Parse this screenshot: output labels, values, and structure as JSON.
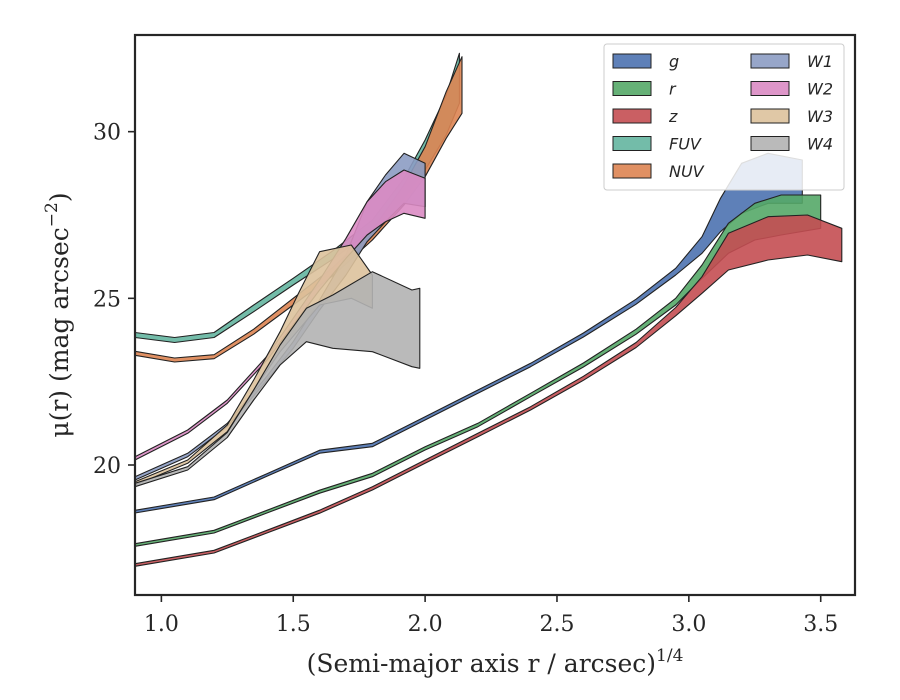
{
  "chart_data": {
    "type": "area",
    "xlabel": "(Semi-major axis r / arcsec)",
    "xlabel_sup": "1/4",
    "ylabel": "μ(r) (mag arcsec",
    "ylabel_sup": "−2",
    "ylabel_end": ")",
    "xlim": [
      0.9,
      3.63
    ],
    "ylim": [
      32.9,
      16.1
    ],
    "y_inverted": true,
    "xticks": [
      1.0,
      1.5,
      2.0,
      2.5,
      3.0,
      3.5
    ],
    "xtick_labels": [
      "1.0",
      "1.5",
      "2.0",
      "2.5",
      "3.0",
      "3.5"
    ],
    "yticks": [
      20,
      25,
      30
    ],
    "ytick_labels": [
      "20",
      "25",
      "30"
    ],
    "grid": false,
    "legend_position": "top-right",
    "legend_columns": 2,
    "series": [
      {
        "name": "g",
        "color": "#4c72b0",
        "points": [
          [
            0.9,
            18.6
          ],
          [
            1.2,
            19.0
          ],
          [
            1.4,
            19.7
          ],
          [
            1.6,
            20.4
          ],
          [
            1.8,
            20.6
          ],
          [
            2.0,
            21.4
          ],
          [
            2.2,
            22.2
          ],
          [
            2.4,
            23.0
          ],
          [
            2.6,
            23.9
          ],
          [
            2.8,
            24.9
          ],
          [
            2.95,
            25.8
          ],
          [
            3.05,
            26.6
          ],
          [
            3.12,
            27.5
          ],
          [
            3.2,
            28.3
          ],
          [
            3.3,
            28.6
          ],
          [
            3.43,
            28.5
          ]
        ],
        "widths": [
          0.08,
          0.08,
          0.08,
          0.09,
          0.1,
          0.1,
          0.1,
          0.1,
          0.12,
          0.15,
          0.2,
          0.5,
          1.0,
          1.5,
          1.5,
          1.3
        ]
      },
      {
        "name": "r",
        "color": "#55a868",
        "points": [
          [
            0.9,
            17.6
          ],
          [
            1.2,
            18.0
          ],
          [
            1.4,
            18.6
          ],
          [
            1.6,
            19.2
          ],
          [
            1.8,
            19.7
          ],
          [
            2.0,
            20.5
          ],
          [
            2.2,
            21.2
          ],
          [
            2.4,
            22.1
          ],
          [
            2.6,
            23.0
          ],
          [
            2.8,
            24.0
          ],
          [
            2.95,
            24.9
          ],
          [
            3.05,
            25.8
          ],
          [
            3.15,
            26.8
          ],
          [
            3.25,
            27.3
          ],
          [
            3.35,
            27.5
          ],
          [
            3.5,
            27.6
          ]
        ],
        "widths": [
          0.08,
          0.08,
          0.08,
          0.09,
          0.1,
          0.1,
          0.1,
          0.1,
          0.12,
          0.15,
          0.2,
          0.4,
          0.9,
          1.1,
          1.2,
          1.0
        ]
      },
      {
        "name": "z",
        "color": "#c44e52",
        "points": [
          [
            0.9,
            17.0
          ],
          [
            1.2,
            17.4
          ],
          [
            1.4,
            18.0
          ],
          [
            1.6,
            18.6
          ],
          [
            1.8,
            19.3
          ],
          [
            2.0,
            20.1
          ],
          [
            2.2,
            20.9
          ],
          [
            2.4,
            21.7
          ],
          [
            2.6,
            22.6
          ],
          [
            2.8,
            23.6
          ],
          [
            2.95,
            24.6
          ],
          [
            3.05,
            25.4
          ],
          [
            3.15,
            26.4
          ],
          [
            3.3,
            26.8
          ],
          [
            3.45,
            26.9
          ],
          [
            3.58,
            26.6
          ]
        ],
        "widths": [
          0.08,
          0.08,
          0.08,
          0.09,
          0.1,
          0.1,
          0.1,
          0.1,
          0.12,
          0.15,
          0.25,
          0.5,
          1.1,
          1.3,
          1.2,
          1.0
        ]
      },
      {
        "name": "FUV",
        "color": "#64b5a0",
        "points": [
          [
            0.9,
            23.9
          ],
          [
            1.05,
            23.75
          ],
          [
            1.2,
            23.9
          ],
          [
            1.35,
            24.7
          ],
          [
            1.5,
            25.5
          ],
          [
            1.65,
            26.3
          ],
          [
            1.8,
            27.2
          ],
          [
            1.92,
            28.3
          ],
          [
            2.0,
            29.3
          ],
          [
            2.08,
            30.5
          ],
          [
            2.13,
            31.6
          ]
        ],
        "widths": [
          0.15,
          0.15,
          0.15,
          0.2,
          0.2,
          0.25,
          0.3,
          0.6,
          0.9,
          1.2,
          1.5
        ]
      },
      {
        "name": "NUV",
        "color": "#dd8452",
        "points": [
          [
            0.9,
            23.35
          ],
          [
            1.05,
            23.15
          ],
          [
            1.2,
            23.25
          ],
          [
            1.35,
            24.0
          ],
          [
            1.5,
            24.9
          ],
          [
            1.65,
            25.8
          ],
          [
            1.8,
            26.9
          ],
          [
            1.92,
            28.1
          ],
          [
            2.0,
            29.1
          ],
          [
            2.08,
            30.5
          ],
          [
            2.14,
            31.4
          ]
        ],
        "widths": [
          0.12,
          0.12,
          0.12,
          0.15,
          0.2,
          0.25,
          0.3,
          0.6,
          0.9,
          1.4,
          1.7
        ]
      },
      {
        "name": "W1",
        "color": "#8c9cc3",
        "points": [
          [
            0.9,
            19.6
          ],
          [
            1.1,
            20.3
          ],
          [
            1.25,
            21.2
          ],
          [
            1.4,
            22.6
          ],
          [
            1.5,
            23.6
          ],
          [
            1.6,
            24.8
          ],
          [
            1.7,
            26.0
          ],
          [
            1.78,
            27.3
          ],
          [
            1.85,
            28.0
          ],
          [
            1.92,
            28.6
          ],
          [
            2.0,
            28.4
          ]
        ],
        "widths": [
          0.1,
          0.1,
          0.1,
          0.12,
          0.2,
          0.3,
          0.6,
          1.2,
          1.4,
          1.5,
          1.3
        ]
      },
      {
        "name": "W2",
        "color": "#da8bc3",
        "points": [
          [
            0.9,
            20.2
          ],
          [
            1.1,
            21.0
          ],
          [
            1.25,
            21.9
          ],
          [
            1.4,
            23.2
          ],
          [
            1.5,
            24.3
          ],
          [
            1.6,
            25.4
          ],
          [
            1.7,
            26.5
          ],
          [
            1.78,
            27.4
          ],
          [
            1.85,
            27.9
          ],
          [
            1.92,
            28.2
          ],
          [
            2.0,
            28.0
          ]
        ],
        "widths": [
          0.1,
          0.1,
          0.1,
          0.12,
          0.2,
          0.3,
          0.6,
          1.0,
          1.2,
          1.3,
          1.2
        ]
      },
      {
        "name": "W3",
        "color": "#ddc29c",
        "points": [
          [
            0.9,
            19.45
          ],
          [
            1.1,
            20.1
          ],
          [
            1.25,
            21.1
          ],
          [
            1.35,
            22.4
          ],
          [
            1.45,
            23.7
          ],
          [
            1.52,
            24.6
          ],
          [
            1.6,
            25.6
          ],
          [
            1.72,
            25.8
          ],
          [
            1.8,
            25.2
          ]
        ],
        "widths": [
          0.1,
          0.1,
          0.2,
          0.3,
          0.6,
          1.1,
          1.6,
          1.6,
          1.0
        ]
      },
      {
        "name": "W4",
        "color": "#b3b3b3",
        "points": [
          [
            0.9,
            19.4
          ],
          [
            1.1,
            19.9
          ],
          [
            1.25,
            20.9
          ],
          [
            1.35,
            22.1
          ],
          [
            1.45,
            23.3
          ],
          [
            1.55,
            24.2
          ],
          [
            1.65,
            24.3
          ],
          [
            1.8,
            24.6
          ],
          [
            1.95,
            24.1
          ],
          [
            1.98,
            24.1
          ]
        ],
        "widths": [
          0.1,
          0.1,
          0.15,
          0.3,
          0.6,
          1.0,
          1.6,
          2.4,
          2.3,
          2.4
        ]
      }
    ]
  }
}
